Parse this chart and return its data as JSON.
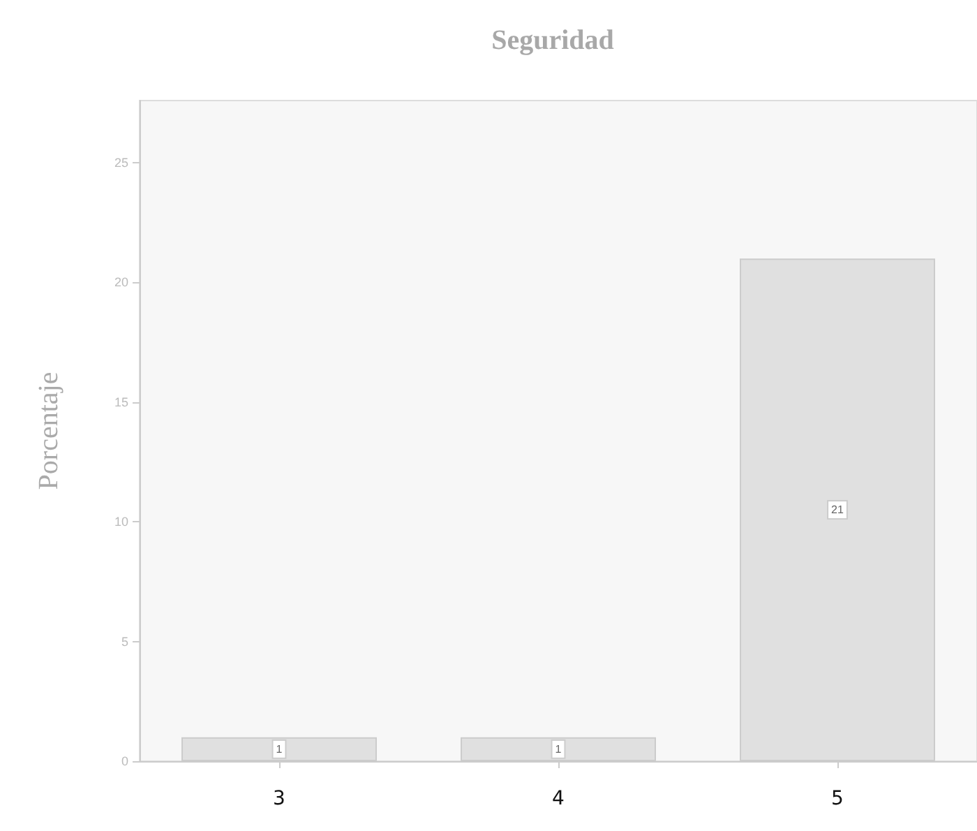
{
  "chart_data": {
    "type": "bar",
    "title": "Seguridad",
    "ylabel": "Porcentaje",
    "categories": [
      "3",
      "4",
      "5"
    ],
    "values": [
      1,
      1,
      21
    ],
    "color": "#e0e0e0",
    "ylim": [
      0,
      27.6
    ],
    "yticks": [
      0,
      5,
      10,
      15,
      20,
      25
    ],
    "grid": false,
    "data_labels": true
  }
}
